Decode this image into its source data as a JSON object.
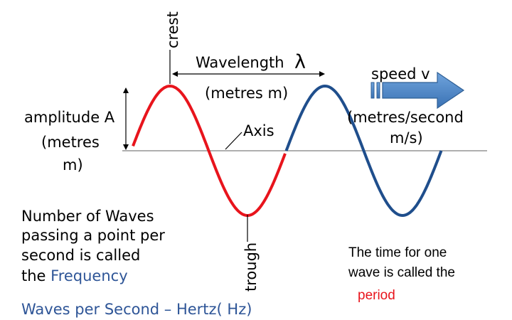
{
  "labels": {
    "crest": "crest",
    "trough": "trough",
    "wavelength": "Wavelength",
    "lambda": "λ",
    "wavelength_units": "(metres m)",
    "speed": "speed v",
    "speed_units_1": "(metres/second",
    "speed_units_2": "m/s)",
    "amplitude": "amplitude A",
    "amplitude_units_1": "(metres",
    "amplitude_units_2": "m)",
    "axis": "Axis"
  },
  "frequency_text": {
    "line1": "Number of Waves",
    "line2": "passing a point per",
    "line3": "second is called",
    "line4_prefix": "the ",
    "line4_keyword": "Frequency",
    "unit_line": "Waves per Second – Hertz( Hz)"
  },
  "period_text": {
    "line1": "The time for one",
    "line2": "wave is called the",
    "keyword": "period"
  },
  "colors": {
    "wave_first": "#e8141c",
    "wave_second": "#1f4e8c",
    "arrow_fill": "#4a86c8",
    "arrow_stroke": "#2f5f95",
    "axis": "#7f7f7f",
    "frequency_keyword": "#2e5597",
    "unit_line": "#2e5597",
    "period_keyword": "#e8141c"
  }
}
